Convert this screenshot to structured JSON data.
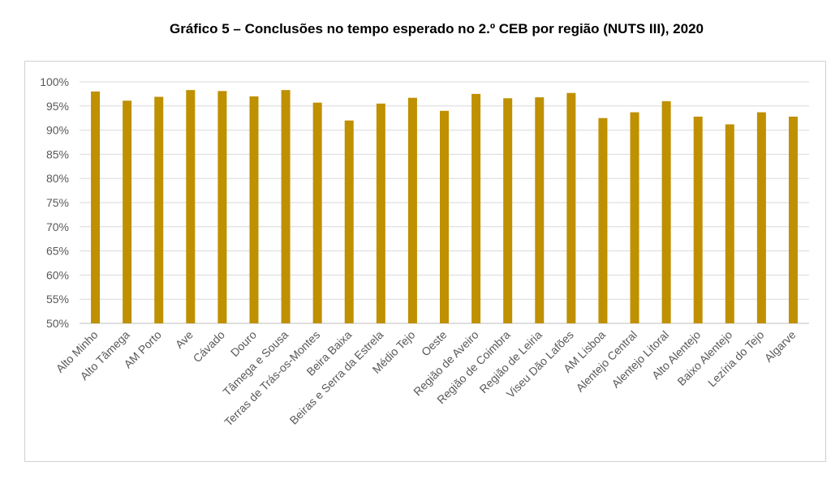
{
  "chart_data": {
    "type": "bar",
    "title": "Gráfico 5 – Conclusões no tempo esperado no 2.º CEB por região (NUTS III), 2020",
    "xlabel": "",
    "ylabel": "",
    "ylim": [
      0.5,
      1.0
    ],
    "y_ticks": [
      "50%",
      "55%",
      "60%",
      "65%",
      "70%",
      "75%",
      "80%",
      "85%",
      "90%",
      "95%",
      "100%"
    ],
    "grid": true,
    "bar_color": "#BF9000",
    "categories": [
      "Alto Minho",
      "Alto Tâmega",
      "AM Porto",
      "Ave",
      "Cávado",
      "Douro",
      "Tâmega e Sousa",
      "Terras de Trás-os-Montes",
      "Beira Baixa",
      "Beiras e Serra da Estrela",
      "Médio Tejo",
      "Oeste",
      "Região de Aveiro",
      "Região de Coimbra",
      "Região de Leiria",
      "Viseu Dão Lafões",
      "AM Lisboa",
      "Alentejo Central",
      "Alentejo Litoral",
      "Alto Alentejo",
      "Baixo Alentejo",
      "Lezíria do Tejo",
      "Algarve"
    ],
    "values": [
      0.98,
      0.961,
      0.969,
      0.983,
      0.981,
      0.97,
      0.983,
      0.957,
      0.92,
      0.955,
      0.967,
      0.94,
      0.975,
      0.966,
      0.968,
      0.977,
      0.925,
      0.937,
      0.96,
      0.928,
      0.912,
      0.937,
      0.928
    ]
  }
}
